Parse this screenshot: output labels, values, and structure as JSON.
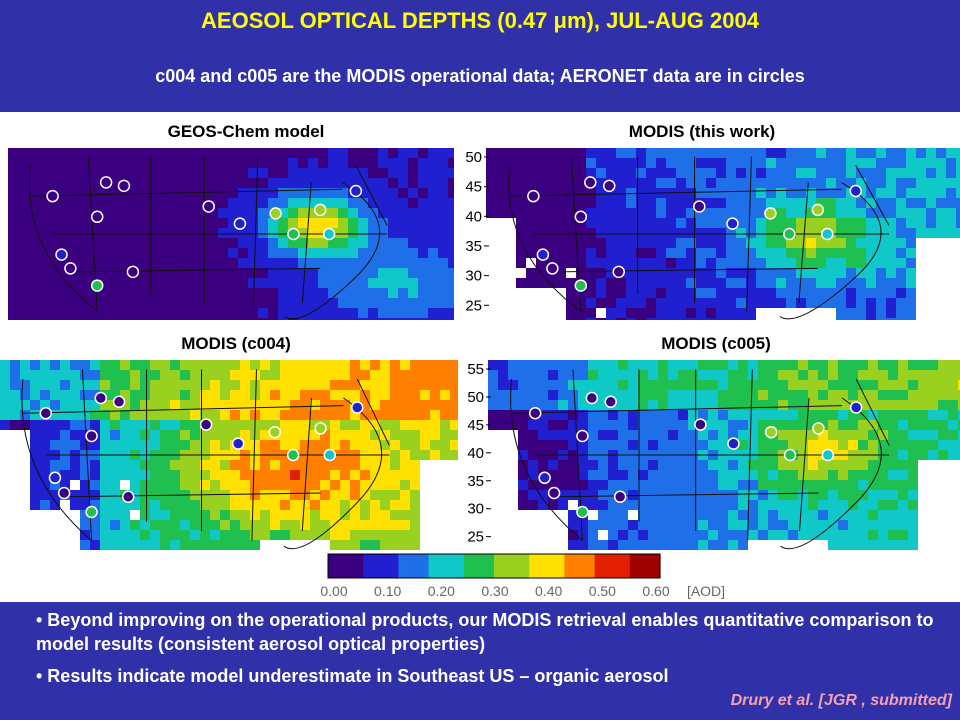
{
  "header": {
    "title": "AEOSOL OPTICAL DEPTHS (0.47 μm), JUL-AUG 2004",
    "subtitle": "c004 and c005 are the MODIS operational data; AERONET data are in circles"
  },
  "panels": [
    {
      "label": "GEOS-Chem model",
      "scheme": "model"
    },
    {
      "label": "MODIS (this work)",
      "scheme": "this"
    },
    {
      "label": "MODIS (c004)",
      "scheme": "c004"
    },
    {
      "label": "MODIS (c005)",
      "scheme": "c005"
    }
  ],
  "lat_ticks_top": [
    "50",
    "45",
    "40",
    "35",
    "30",
    "25"
  ],
  "lat_ticks_bottom": [
    "55",
    "50",
    "45",
    "40",
    "35",
    "30",
    "25"
  ],
  "colorbar": {
    "ticks": [
      "0.00",
      "0.10",
      "0.20",
      "0.30",
      "0.40",
      "0.50",
      "0.60"
    ],
    "unit": "[AOD]",
    "colors": [
      "#3a0080",
      "#2020d0",
      "#1f6fe8",
      "#10c8c8",
      "#20c050",
      "#9ad020",
      "#ffe000",
      "#ff8000",
      "#e02000",
      "#a00000"
    ]
  },
  "footer": {
    "bullet1": "• Beyond improving on the operational products, our MODIS retrieval enables quantitative comparison to model results (consistent aerosol optical properties)",
    "bullet2": "• Results indicate model underestimate in Southeast US – organic aerosol",
    "citation": "Drury et al. [JGR , submitted]"
  }
}
